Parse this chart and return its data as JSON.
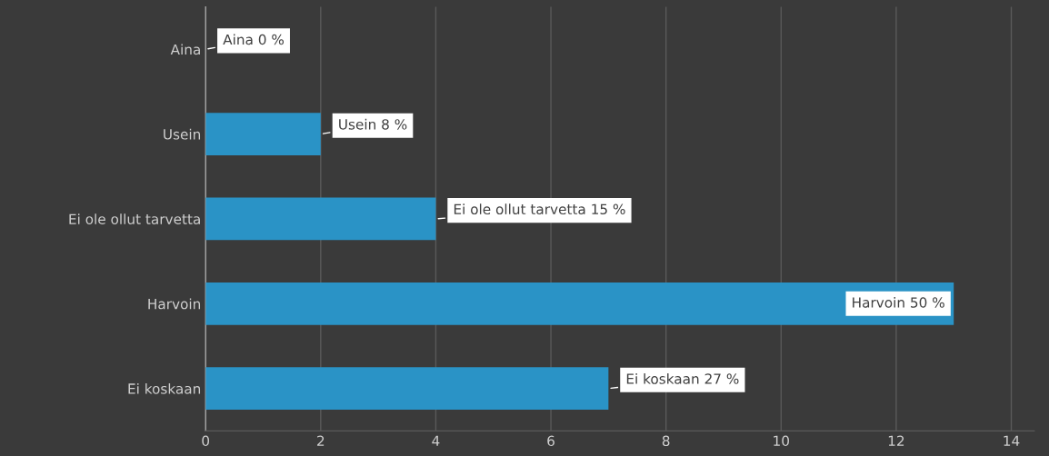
{
  "chart_data": {
    "type": "bar",
    "orientation": "horizontal",
    "categories": [
      "Aina",
      "Usein",
      "Ei ole ollut tarvetta",
      "Harvoin",
      "Ei koskaan"
    ],
    "values": [
      0,
      2,
      4,
      13,
      7
    ],
    "color": "#2a93c6",
    "value_labels": [
      "Aina 0 %",
      "Usein 8 %",
      "Ei ole ollut tarvetta 15 %",
      "Harvoin 50 %",
      "Ei koskaan 27 %"
    ],
    "xlim": [
      0,
      14.4
    ],
    "xticks": [
      0,
      2,
      4,
      6,
      8,
      10,
      12,
      14
    ],
    "grid": "x",
    "legend": false
  }
}
